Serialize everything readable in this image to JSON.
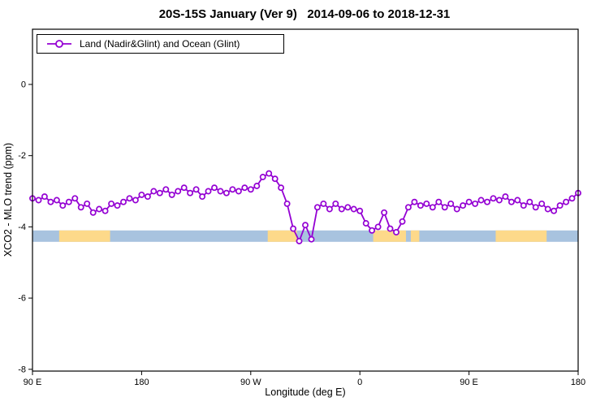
{
  "title": "20S-15S January (Ver 9)   2014-09-06 to 2018-12-31",
  "legend": {
    "label": "Land (Nadir&Glint) and Ocean (Glint)"
  },
  "axes": {
    "xlabel": "Longitude (deg E)",
    "ylabel": "XCO2 - MLO trend (ppm)"
  },
  "colors": {
    "series": "#9400D3",
    "ocean": "#a8c3df",
    "land": "#fdd98a"
  },
  "chart_data": {
    "type": "line",
    "title": "20S-15S January (Ver 9)   2014-09-06 to 2018-12-31",
    "xlabel": "Longitude (deg E)",
    "ylabel": "XCO2 - MLO trend (ppm)",
    "xlim": [
      90,
      540
    ],
    "ylim": [
      -8.05,
      1.55
    ],
    "grid": false,
    "legend_position": "top-left",
    "xticks": [
      {
        "value": 90,
        "label": "90 E"
      },
      {
        "value": 180,
        "label": "180"
      },
      {
        "value": 270,
        "label": "90 W"
      },
      {
        "value": 360,
        "label": "0"
      },
      {
        "value": 450,
        "label": "90 E"
      },
      {
        "value": 540,
        "label": "180"
      }
    ],
    "yticks": [
      {
        "value": 0,
        "label": "0"
      },
      {
        "value": -2,
        "label": "-2"
      },
      {
        "value": -4,
        "label": "-4"
      },
      {
        "value": -6,
        "label": "-6"
      },
      {
        "value": -8,
        "label": "-8"
      }
    ],
    "series": [
      {
        "name": "Land (Nadir&Glint) and Ocean (Glint)",
        "color": "#9400D3",
        "marker": "circle",
        "x": [
          90,
          95,
          100,
          105,
          110,
          115,
          120,
          125,
          130,
          135,
          140,
          145,
          150,
          155,
          160,
          165,
          170,
          175,
          180,
          185,
          190,
          195,
          200,
          205,
          210,
          215,
          220,
          225,
          230,
          235,
          240,
          245,
          250,
          255,
          260,
          265,
          270,
          275,
          280,
          285,
          290,
          295,
          300,
          305,
          310,
          315,
          320,
          325,
          330,
          335,
          340,
          345,
          350,
          355,
          360,
          365,
          370,
          375,
          380,
          385,
          390,
          395,
          400,
          405,
          410,
          415,
          420,
          425,
          430,
          435,
          440,
          445,
          450,
          455,
          460,
          465,
          470,
          475,
          480,
          485,
          490,
          495,
          500,
          505,
          510,
          515,
          520,
          525,
          530,
          535,
          540
        ],
        "y": [
          -3.2,
          -3.25,
          -3.15,
          -3.3,
          -3.25,
          -3.4,
          -3.3,
          -3.2,
          -3.45,
          -3.35,
          -3.6,
          -3.5,
          -3.55,
          -3.35,
          -3.4,
          -3.3,
          -3.2,
          -3.25,
          -3.1,
          -3.15,
          -3.0,
          -3.05,
          -2.95,
          -3.1,
          -3.0,
          -2.9,
          -3.05,
          -2.95,
          -3.15,
          -3.0,
          -2.9,
          -3.0,
          -3.05,
          -2.95,
          -3.0,
          -2.9,
          -2.95,
          -2.85,
          -2.6,
          -2.5,
          -2.65,
          -2.9,
          -3.35,
          -4.05,
          -4.4,
          -3.95,
          -4.35,
          -3.45,
          -3.35,
          -3.5,
          -3.35,
          -3.5,
          -3.45,
          -3.5,
          -3.55,
          -3.9,
          -4.1,
          -4.0,
          -3.6,
          -4.05,
          -4.15,
          -3.85,
          -3.45,
          -3.3,
          -3.4,
          -3.35,
          -3.45,
          -3.3,
          -3.45,
          -3.35,
          -3.5,
          -3.4,
          -3.3,
          -3.35,
          -3.25,
          -3.3,
          -3.2,
          -3.25,
          -3.15,
          -3.3,
          -3.25,
          -3.4,
          -3.3,
          -3.45,
          -3.35,
          -3.5,
          -3.55,
          -3.4,
          -3.3,
          -3.2,
          -3.05
        ]
      }
    ],
    "surface_band": {
      "description": "land-ocean strip along 20S-15S latitude band",
      "y_range": [
        -4.1,
        -4.42
      ],
      "ocean_color": "#a8c3df",
      "land_color": "#fdd98a",
      "land_segments_lon": [
        [
          112,
          154
        ],
        [
          284,
          308
        ],
        [
          371,
          398
        ],
        [
          402,
          409
        ],
        [
          472,
          514
        ]
      ]
    }
  }
}
